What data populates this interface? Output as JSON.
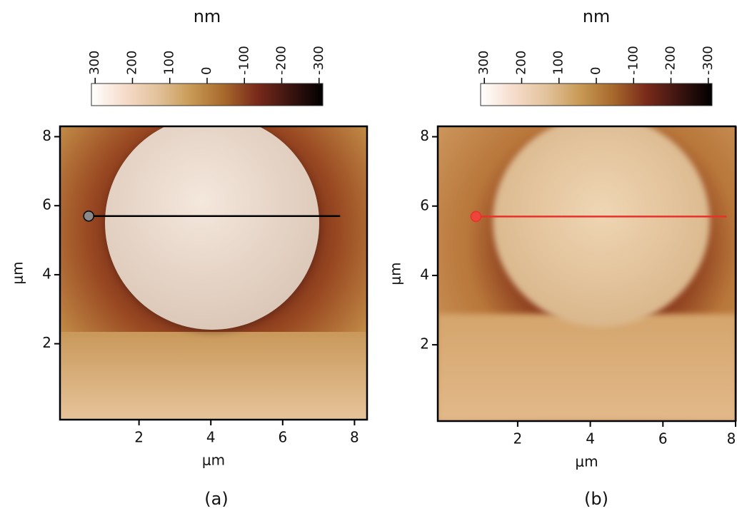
{
  "chart_data": [
    {
      "type": "afm-image",
      "caption": "(a)",
      "xlabel": "μm",
      "ylabel": "μm",
      "xlim": [
        -0.2,
        8.35
      ],
      "ylim": [
        -0.2,
        8.3
      ],
      "xticks": [
        2,
        4,
        6,
        8
      ],
      "yticks": [
        2,
        4,
        6,
        8
      ],
      "colorbar": {
        "label": "nm",
        "lim": [
          310,
          -310
        ],
        "ticks": [
          300,
          200,
          100,
          0,
          -100,
          -200,
          -300
        ],
        "colormap": [
          "#ffffff",
          "#f6dccb",
          "#e2c29c",
          "#c89a55",
          "#a8692c",
          "#7a2a1a",
          "#3c1410",
          "#000000"
        ]
      },
      "profile": {
        "x": [
          0.6,
          7.6
        ],
        "y": [
          5.7,
          5.7
        ],
        "color": "#000000",
        "marker_color": "#8a8a8a"
      }
    },
    {
      "type": "afm-image",
      "caption": "(b)",
      "xlabel": "μm",
      "ylabel": "μm",
      "xlim": [
        -0.2,
        8.0
      ],
      "ylim": [
        -0.2,
        8.3
      ],
      "xticks": [
        2,
        4,
        6,
        8
      ],
      "yticks": [
        2,
        4,
        6,
        8
      ],
      "colorbar": {
        "label": "nm",
        "lim": [
          310,
          -310
        ],
        "ticks": [
          300,
          200,
          100,
          0,
          -100,
          -200,
          -300
        ],
        "colormap": [
          "#ffffff",
          "#f6dccb",
          "#e2c29c",
          "#c89a55",
          "#a8692c",
          "#7a2a1a",
          "#3c1410",
          "#000000"
        ]
      },
      "profile": {
        "x": [
          0.85,
          7.75
        ],
        "y": [
          5.7,
          5.7
        ],
        "color": "#e8312a",
        "marker_color": "#f0443a"
      }
    }
  ]
}
